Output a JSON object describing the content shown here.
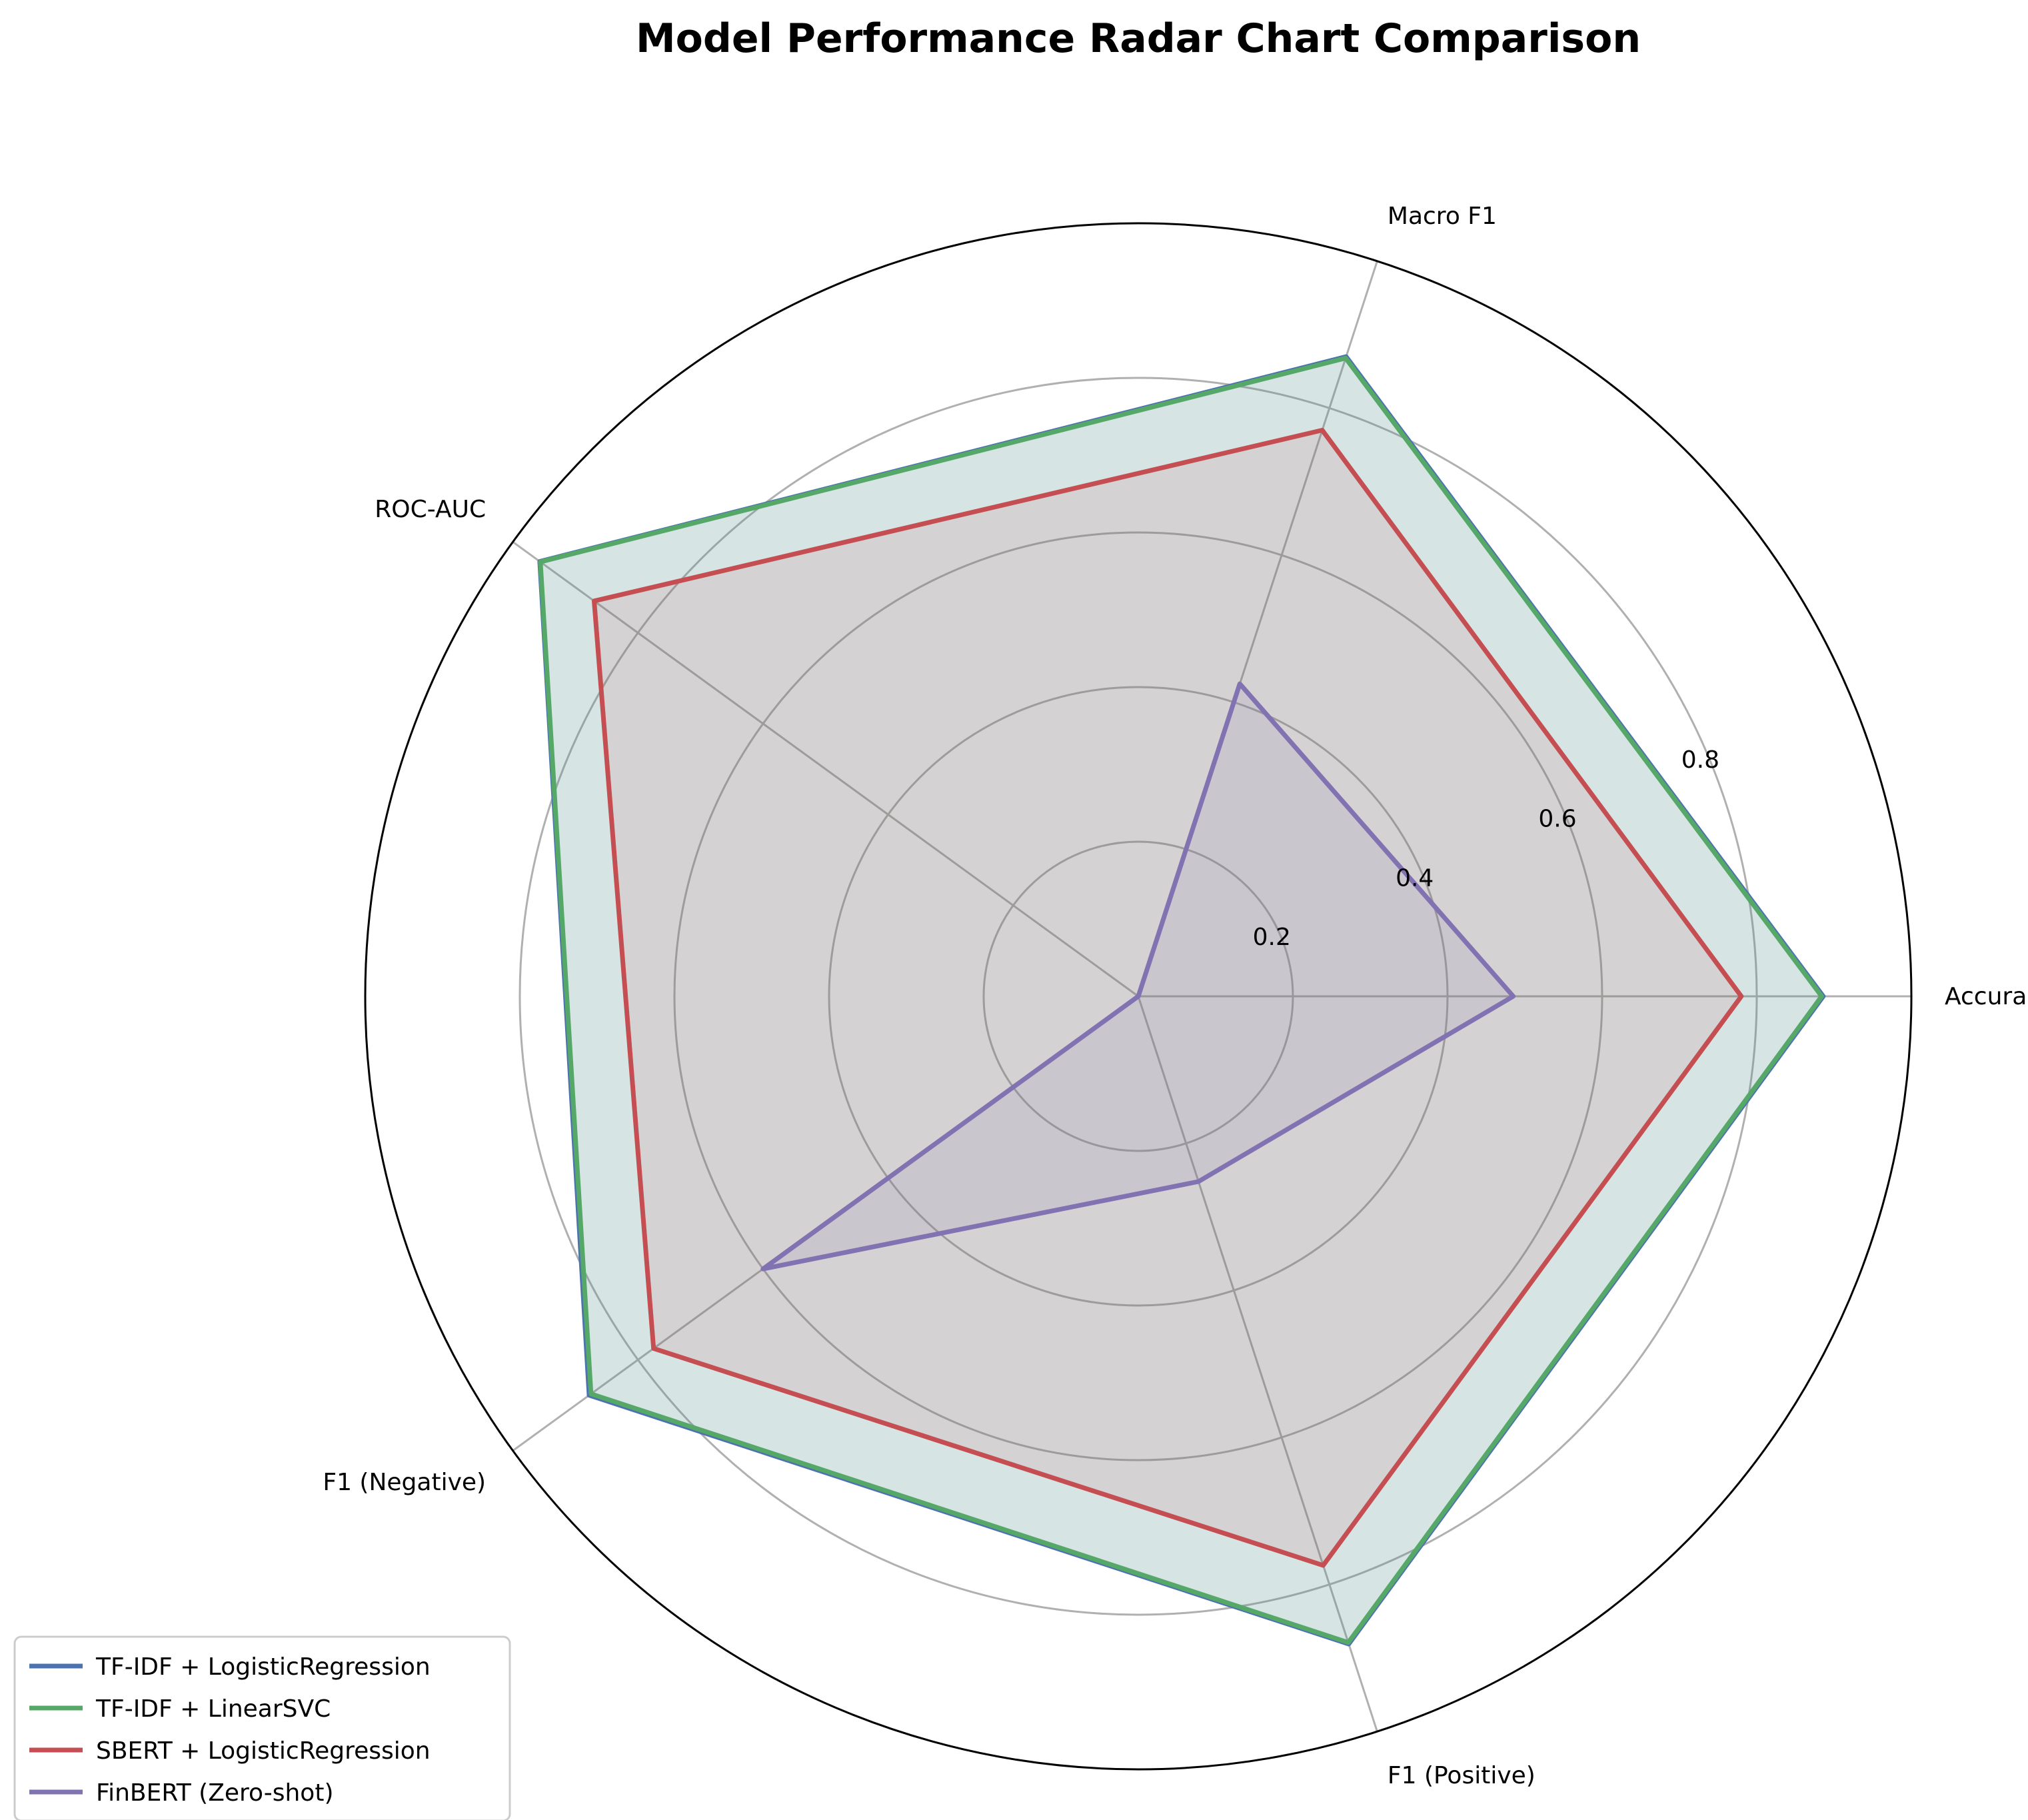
{
  "chart_data": {
    "type": "radar",
    "title": "Model Performance Radar Chart Comparison",
    "axes": [
      "Accuracy",
      "Macro F1",
      "ROC-AUC",
      "F1 (Negative)",
      "F1 (Positive)"
    ],
    "rlim": [
      0,
      1
    ],
    "rticks": [
      0.2,
      0.4,
      0.6,
      0.8
    ],
    "rtick_labels": [
      "0.2",
      "0.4",
      "0.6",
      "0.8"
    ],
    "grid": true,
    "legend_position": "bottom-left",
    "series": [
      {
        "name": "TF-IDF + LogisticRegression",
        "color": "#4c72b0",
        "values": [
          0.886,
          0.87,
          0.957,
          0.878,
          0.881
        ]
      },
      {
        "name": "TF-IDF + LinearSVC",
        "color": "#55a868",
        "values": [
          0.884,
          0.868,
          0.956,
          0.875,
          0.879
        ]
      },
      {
        "name": "SBERT + LogisticRegression",
        "color": "#c44e52",
        "values": [
          0.78,
          0.77,
          0.87,
          0.775,
          0.774
        ]
      },
      {
        "name": "FinBERT (Zero-shot)",
        "color": "#8172b2",
        "values": [
          0.485,
          0.425,
          0.0,
          0.6,
          0.252
        ]
      }
    ]
  }
}
